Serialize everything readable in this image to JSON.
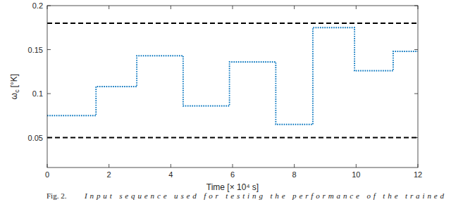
{
  "chart_data": {
    "type": "line",
    "xlabel": "Time [× 10⁴ s]",
    "ylabel": [
      "ω",
      "c",
      "[°K]"
    ],
    "caption": [
      "Fig. 2.",
      "Input sequence used for testing the performance of the trained"
    ],
    "x": [
      0,
      1.58,
      2.9,
      4.4,
      5.9,
      7.4,
      8.6,
      9.95,
      11.2,
      12
    ],
    "series": [
      {
        "type": "step",
        "color": "#0072bd",
        "line_style": "dotted",
        "values": [
          0.075,
          0.108,
          0.143,
          0.086,
          0.136,
          0.065,
          0.175,
          0.126,
          0.148,
          0.148
        ]
      }
    ],
    "reference_lines": [
      {
        "value": 0.18,
        "color": "#000000",
        "line_style": "dashed"
      },
      {
        "value": 0.05,
        "color": "#000000",
        "line_style": "dashed"
      }
    ],
    "xlim": [
      0,
      12
    ],
    "xticks": [
      0,
      2,
      4,
      6,
      8,
      10,
      12
    ],
    "ylim": [
      0.016,
      0.2
    ],
    "yticks": [
      0.05,
      0.1,
      0.15,
      0.2
    ],
    "grid": false
  }
}
